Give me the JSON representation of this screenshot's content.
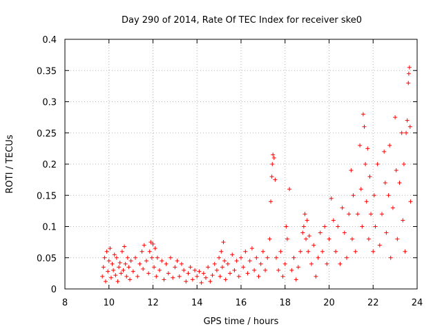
{
  "chart_data": {
    "type": "scatter",
    "title": "Day 290 of 2014, Rate Of TEC Index for receiver ske0",
    "xlabel": "GPS time / hours",
    "ylabel": "ROTI / TECUs",
    "xlim": [
      8,
      24
    ],
    "ylim": [
      0,
      0.4
    ],
    "x_ticks": [
      8,
      10,
      12,
      14,
      16,
      18,
      20,
      22,
      24
    ],
    "x_tick_labels": [
      "8",
      "10",
      "12",
      "14",
      "16",
      "18",
      "20",
      "22",
      "24"
    ],
    "y_ticks": [
      0,
      0.05,
      0.1,
      0.15,
      0.2,
      0.25,
      0.3,
      0.35,
      0.4
    ],
    "y_tick_labels": [
      "0",
      "0.05",
      "0.1",
      "0.15",
      "0.2",
      "0.25",
      "0.3",
      "0.35",
      "0.4"
    ],
    "grid": true,
    "marker": "+",
    "marker_color": "#ff0000",
    "series": [
      {
        "name": "ROTI",
        "points": [
          [
            9.7,
            0.02
          ],
          [
            9.75,
            0.035
          ],
          [
            9.8,
            0.05
          ],
          [
            9.85,
            0.012
          ],
          [
            9.9,
            0.06
          ],
          [
            9.95,
            0.028
          ],
          [
            10.0,
            0.045
          ],
          [
            10.05,
            0.065
          ],
          [
            10.1,
            0.018
          ],
          [
            10.15,
            0.04
          ],
          [
            10.2,
            0.03
          ],
          [
            10.25,
            0.055
          ],
          [
            10.3,
            0.022
          ],
          [
            10.35,
            0.05
          ],
          [
            10.4,
            0.012
          ],
          [
            10.45,
            0.035
          ],
          [
            10.5,
            0.042
          ],
          [
            10.55,
            0.025
          ],
          [
            10.6,
            0.06
          ],
          [
            10.65,
            0.03
          ],
          [
            10.7,
            0.068
          ],
          [
            10.75,
            0.04
          ],
          [
            10.8,
            0.02
          ],
          [
            10.85,
            0.05
          ],
          [
            10.9,
            0.035
          ],
          [
            10.95,
            0.015
          ],
          [
            11.0,
            0.045
          ],
          [
            11.1,
            0.028
          ],
          [
            11.2,
            0.05
          ],
          [
            11.3,
            0.02
          ],
          [
            11.4,
            0.04
          ],
          [
            11.5,
            0.06
          ],
          [
            11.55,
            0.032
          ],
          [
            11.6,
            0.07
          ],
          [
            11.7,
            0.045
          ],
          [
            11.8,
            0.025
          ],
          [
            11.85,
            0.06
          ],
          [
            11.9,
            0.075
          ],
          [
            11.95,
            0.05
          ],
          [
            12.0,
            0.072
          ],
          [
            12.05,
            0.035
          ],
          [
            12.1,
            0.065
          ],
          [
            12.15,
            0.02
          ],
          [
            12.2,
            0.05
          ],
          [
            12.3,
            0.03
          ],
          [
            12.4,
            0.045
          ],
          [
            12.5,
            0.015
          ],
          [
            12.6,
            0.04
          ],
          [
            12.7,
            0.025
          ],
          [
            12.8,
            0.05
          ],
          [
            12.9,
            0.018
          ],
          [
            13.0,
            0.035
          ],
          [
            13.1,
            0.045
          ],
          [
            13.2,
            0.02
          ],
          [
            13.3,
            0.04
          ],
          [
            13.4,
            0.03
          ],
          [
            13.5,
            0.012
          ],
          [
            13.6,
            0.025
          ],
          [
            13.7,
            0.035
          ],
          [
            13.8,
            0.015
          ],
          [
            13.9,
            0.03
          ],
          [
            14.0,
            0.02
          ],
          [
            14.1,
            0.028
          ],
          [
            14.2,
            0.01
          ],
          [
            14.3,
            0.025
          ],
          [
            14.4,
            0.018
          ],
          [
            14.5,
            0.035
          ],
          [
            14.6,
            0.012
          ],
          [
            14.7,
            0.022
          ],
          [
            14.8,
            0.04
          ],
          [
            14.9,
            0.03
          ],
          [
            15.0,
            0.05
          ],
          [
            15.05,
            0.02
          ],
          [
            15.1,
            0.06
          ],
          [
            15.15,
            0.035
          ],
          [
            15.2,
            0.075
          ],
          [
            15.25,
            0.045
          ],
          [
            15.3,
            0.015
          ],
          [
            15.4,
            0.04
          ],
          [
            15.5,
            0.025
          ],
          [
            15.6,
            0.055
          ],
          [
            15.7,
            0.03
          ],
          [
            15.8,
            0.045
          ],
          [
            15.9,
            0.02
          ],
          [
            16.0,
            0.05
          ],
          [
            16.1,
            0.035
          ],
          [
            16.2,
            0.06
          ],
          [
            16.3,
            0.025
          ],
          [
            16.4,
            0.045
          ],
          [
            16.5,
            0.065
          ],
          [
            16.6,
            0.03
          ],
          [
            16.7,
            0.05
          ],
          [
            16.8,
            0.02
          ],
          [
            16.9,
            0.04
          ],
          [
            17.0,
            0.06
          ],
          [
            17.1,
            0.03
          ],
          [
            17.2,
            0.05
          ],
          [
            17.3,
            0.08
          ],
          [
            17.35,
            0.14
          ],
          [
            17.4,
            0.18
          ],
          [
            17.42,
            0.2
          ],
          [
            17.45,
            0.215
          ],
          [
            17.5,
            0.21
          ],
          [
            17.55,
            0.175
          ],
          [
            17.6,
            0.05
          ],
          [
            17.7,
            0.03
          ],
          [
            17.8,
            0.06
          ],
          [
            17.9,
            0.02
          ],
          [
            18.0,
            0.04
          ],
          [
            18.05,
            0.1
          ],
          [
            18.1,
            0.08
          ],
          [
            18.2,
            0.16
          ],
          [
            18.3,
            0.03
          ],
          [
            18.4,
            0.05
          ],
          [
            18.5,
            0.015
          ],
          [
            18.6,
            0.035
          ],
          [
            18.7,
            0.06
          ],
          [
            18.8,
            0.09
          ],
          [
            18.85,
            0.1
          ],
          [
            18.9,
            0.12
          ],
          [
            18.95,
            0.08
          ],
          [
            19.0,
            0.11
          ],
          [
            19.05,
            0.06
          ],
          [
            19.1,
            0.085
          ],
          [
            19.2,
            0.04
          ],
          [
            19.3,
            0.07
          ],
          [
            19.4,
            0.02
          ],
          [
            19.5,
            0.05
          ],
          [
            19.6,
            0.09
          ],
          [
            19.7,
            0.06
          ],
          [
            19.8,
            0.1
          ],
          [
            19.9,
            0.04
          ],
          [
            20.0,
            0.08
          ],
          [
            20.1,
            0.145
          ],
          [
            20.2,
            0.11
          ],
          [
            20.3,
            0.06
          ],
          [
            20.4,
            0.1
          ],
          [
            20.5,
            0.04
          ],
          [
            20.6,
            0.13
          ],
          [
            20.7,
            0.09
          ],
          [
            20.8,
            0.05
          ],
          [
            20.9,
            0.12
          ],
          [
            21.0,
            0.19
          ],
          [
            21.05,
            0.08
          ],
          [
            21.1,
            0.15
          ],
          [
            21.2,
            0.06
          ],
          [
            21.3,
            0.12
          ],
          [
            21.4,
            0.23
          ],
          [
            21.45,
            0.16
          ],
          [
            21.5,
            0.1
          ],
          [
            21.55,
            0.28
          ],
          [
            21.6,
            0.26
          ],
          [
            21.65,
            0.2
          ],
          [
            21.7,
            0.14
          ],
          [
            21.75,
            0.225
          ],
          [
            21.8,
            0.08
          ],
          [
            21.85,
            0.18
          ],
          [
            21.9,
            0.12
          ],
          [
            22.0,
            0.06
          ],
          [
            22.05,
            0.15
          ],
          [
            22.1,
            0.1
          ],
          [
            22.2,
            0.2
          ],
          [
            22.3,
            0.07
          ],
          [
            22.4,
            0.12
          ],
          [
            22.5,
            0.22
          ],
          [
            22.55,
            0.17
          ],
          [
            22.6,
            0.09
          ],
          [
            22.7,
            0.15
          ],
          [
            22.75,
            0.23
          ],
          [
            22.8,
            0.05
          ],
          [
            22.9,
            0.13
          ],
          [
            23.0,
            0.275
          ],
          [
            23.05,
            0.19
          ],
          [
            23.1,
            0.08
          ],
          [
            23.2,
            0.17
          ],
          [
            23.3,
            0.25
          ],
          [
            23.35,
            0.11
          ],
          [
            23.4,
            0.2
          ],
          [
            23.45,
            0.06
          ],
          [
            23.5,
            0.25
          ],
          [
            23.55,
            0.27
          ],
          [
            23.6,
            0.33
          ],
          [
            23.62,
            0.345
          ],
          [
            23.65,
            0.355
          ],
          [
            23.68,
            0.26
          ],
          [
            23.7,
            0.14
          ]
        ]
      }
    ]
  }
}
